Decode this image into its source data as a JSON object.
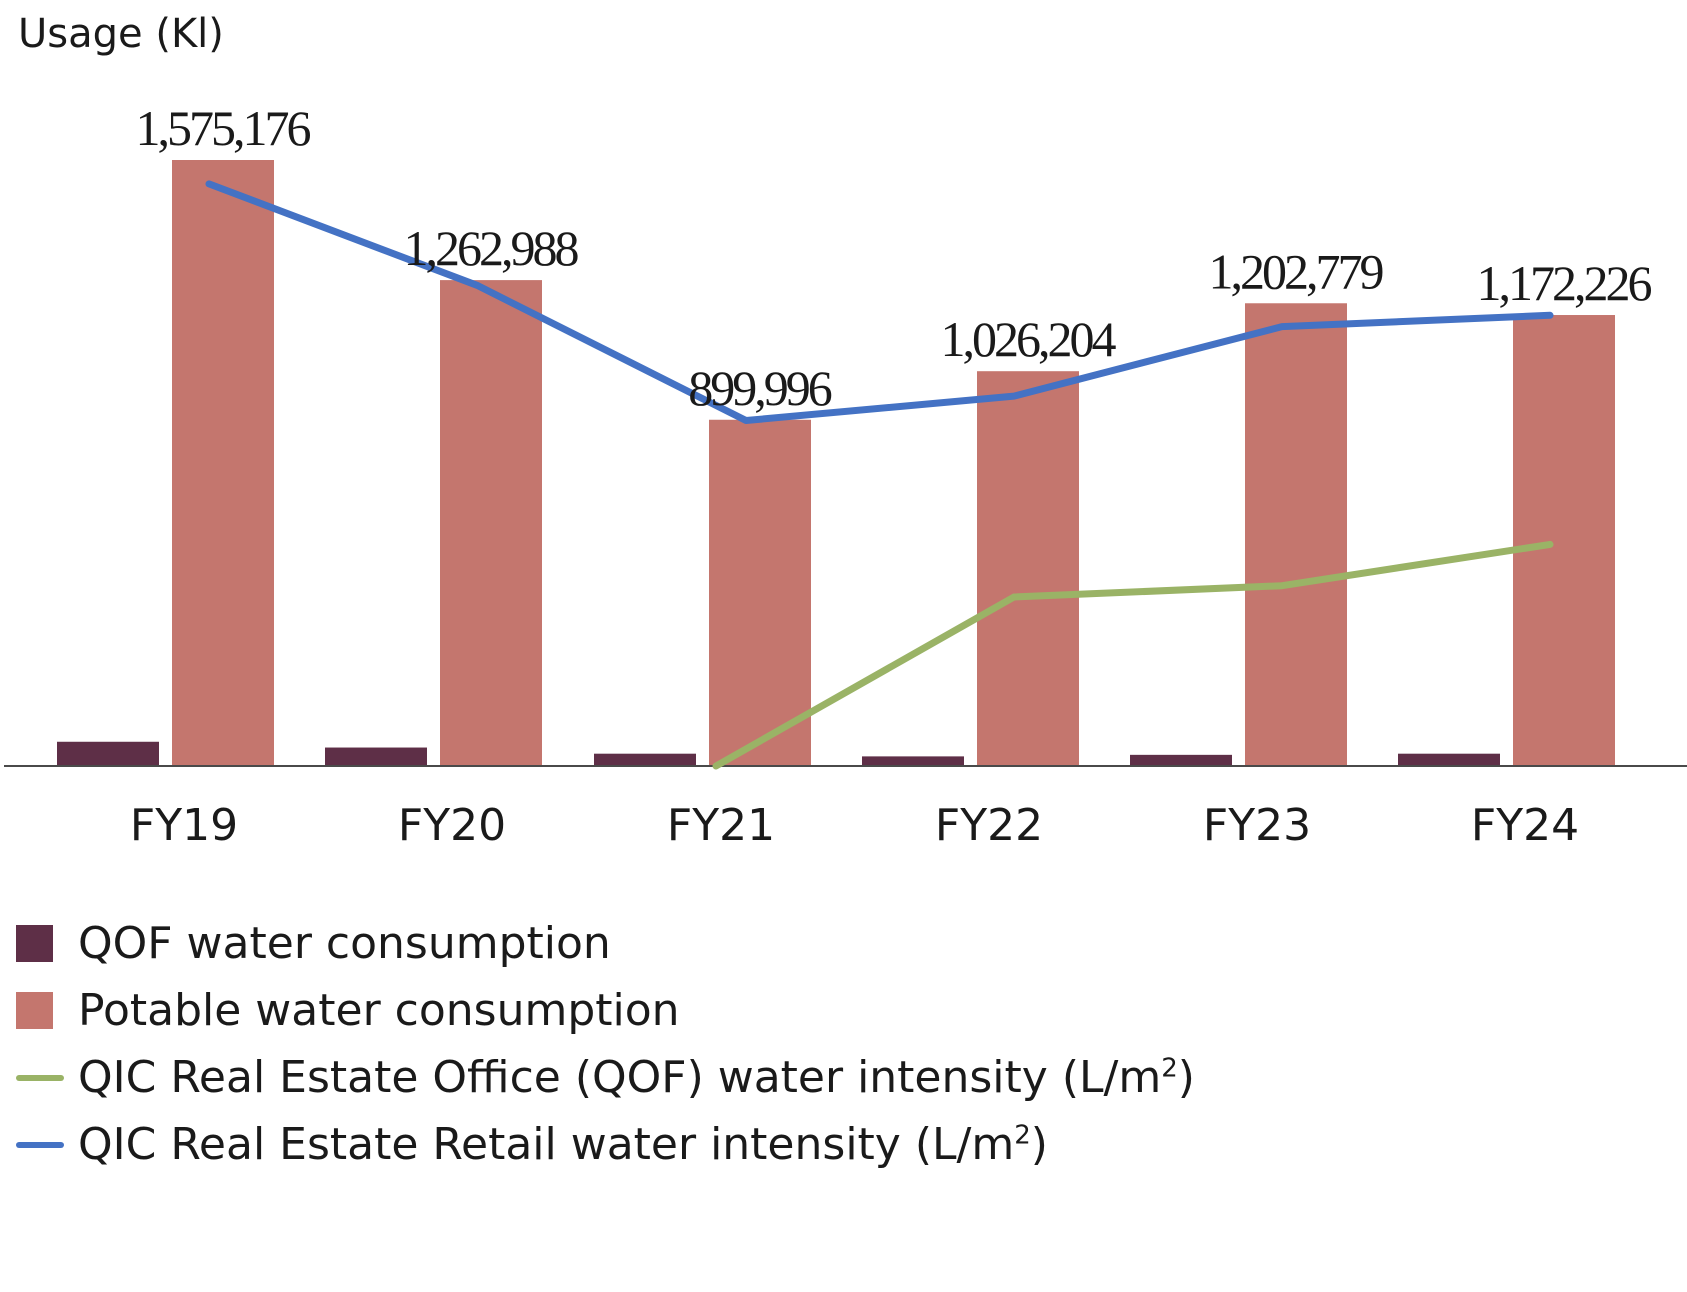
{
  "chart_data": {
    "type": "bar",
    "ylabel": "Usage (Kl)",
    "categories": [
      "FY19",
      "FY20",
      "FY21",
      "FY22",
      "FY23",
      "FY24"
    ],
    "ylim": [
      0,
      1800000
    ],
    "series": [
      {
        "name": "QOF water consumption",
        "kind": "bar",
        "color": "#5e2f47",
        "values": [
          63000,
          48000,
          32000,
          25000,
          29000,
          32000
        ]
      },
      {
        "name": "Potable water consumption",
        "kind": "bar",
        "color": "#c4766e",
        "values": [
          1575176,
          1262988,
          899996,
          1026204,
          1202779,
          1172226
        ],
        "labels": [
          "1,575,176",
          "1,262,988",
          "899,996",
          "1,026,204",
          "1,202,779",
          "1,172,226"
        ]
      },
      {
        "name": "QIC Real Estate Office (QOF) water intensity (L/m",
        "sup": "2",
        "name_suffix": ")",
        "kind": "line",
        "color": "#9ab366",
        "values": [
          null,
          null,
          0,
          450,
          480,
          590
        ]
      },
      {
        "name": "QIC Real Estate Retail water intensity (L/m",
        "sup": "2",
        "name_suffix": ")",
        "kind": "line",
        "color": "#4472c4",
        "values": [
          1550,
          1280,
          920,
          985,
          1170,
          1200
        ]
      }
    ],
    "line_ylim": [
      0,
      1800
    ],
    "legend": "bottom-left",
    "grid": false
  }
}
